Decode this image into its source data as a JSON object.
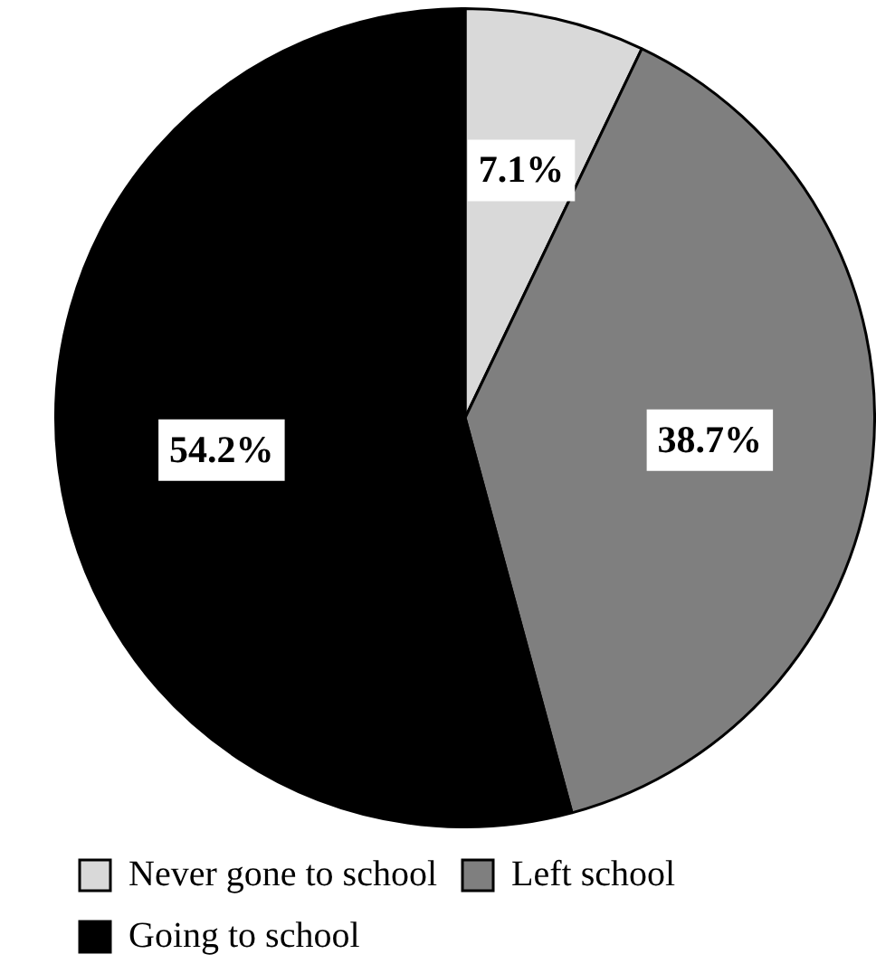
{
  "chart_data": {
    "type": "pie",
    "categories": [
      "Never gone to school",
      "Left school",
      "Going to school"
    ],
    "values": [
      7.1,
      38.7,
      54.2
    ],
    "colors": [
      "#d9d9d9",
      "#7f7f7f",
      "#000000"
    ],
    "value_labels": [
      "7.1%",
      "38.7%",
      "54.2%"
    ],
    "legend": "bottom"
  }
}
